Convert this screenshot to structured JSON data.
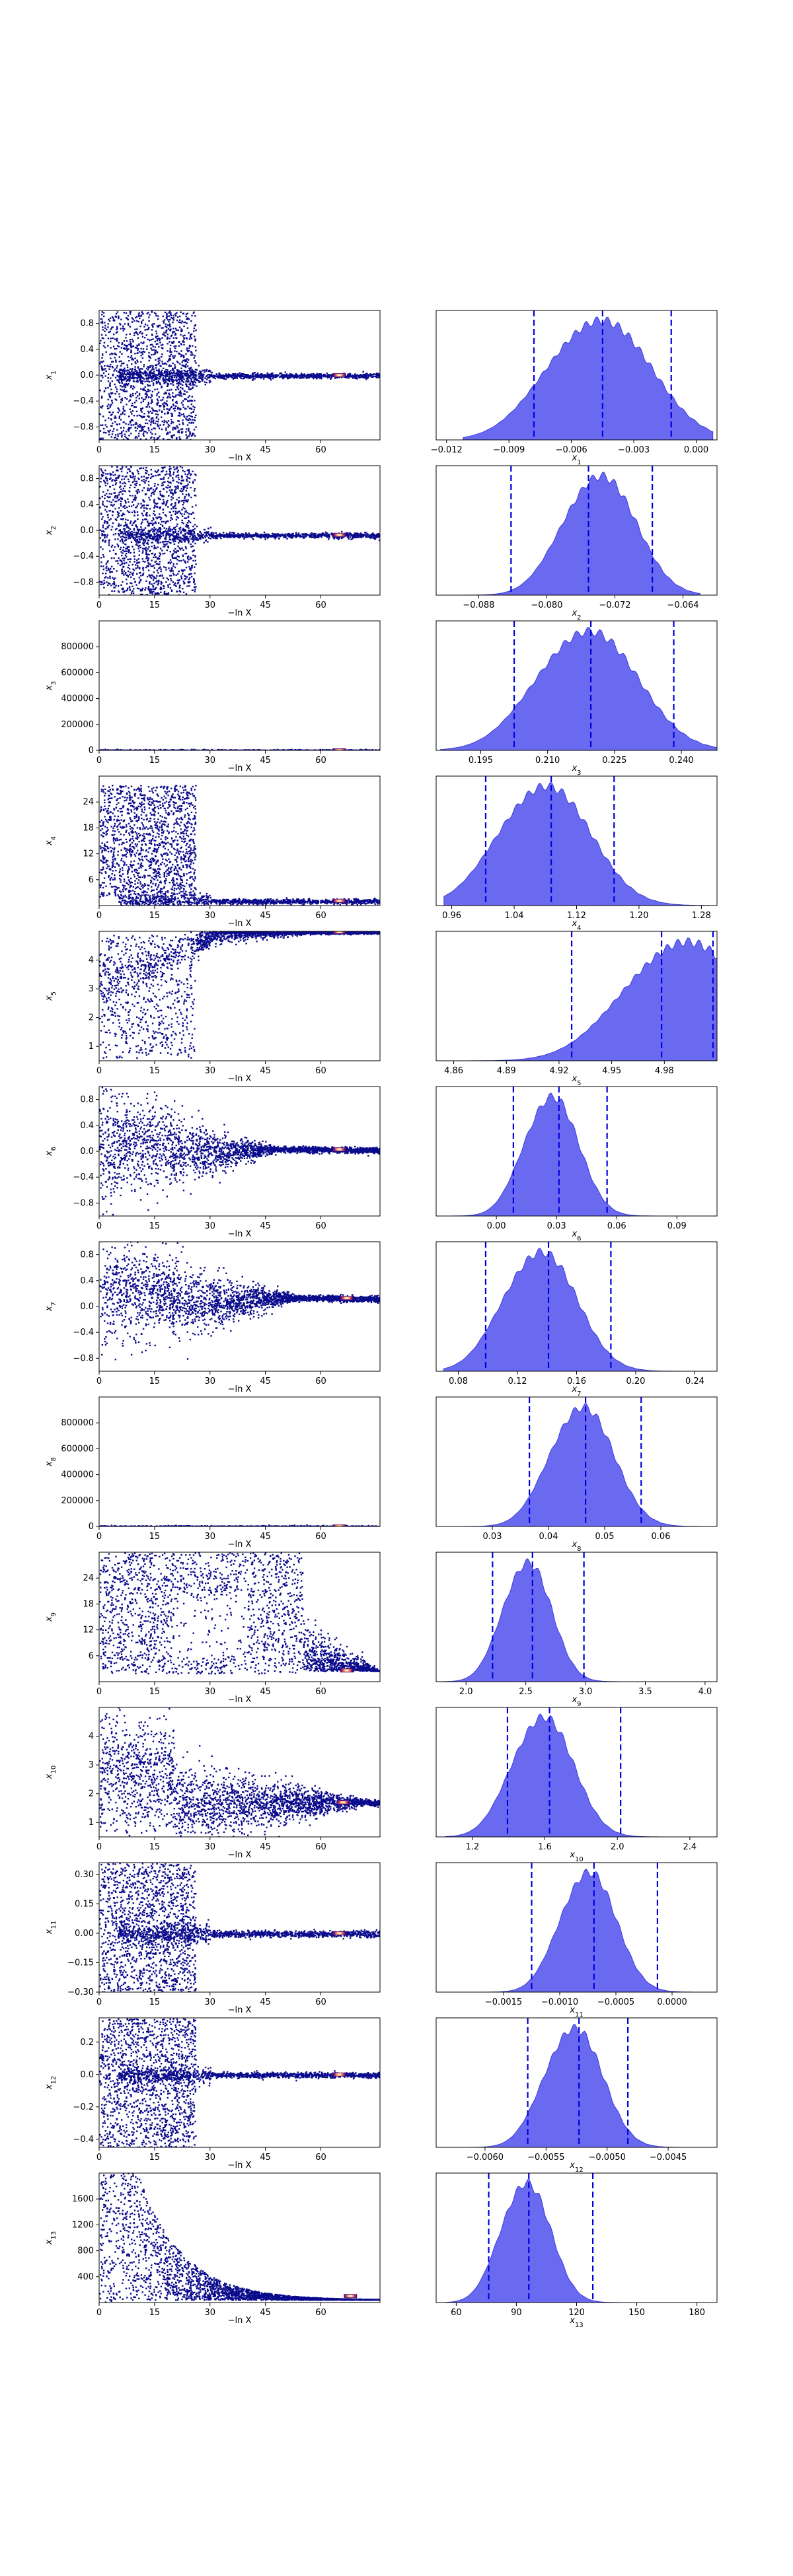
{
  "figure": {
    "title": ""
  },
  "colors": {
    "trace_main": "#0a0a8c",
    "trace_hot": [
      "#3b0f70",
      "#8c2981",
      "#de4968",
      "#fe9f6d",
      "#fcfdbf"
    ],
    "kde_fill": "#5a5af0",
    "kde_edge": "#3b3bdc",
    "quantile_line": "#0000dd",
    "axes": "#000000"
  },
  "chart_data": [
    {
      "type": "scatter",
      "name": "trace-x1",
      "xlabel": "−ln X",
      "ylabel": "x1",
      "xlim": [
        0,
        76
      ],
      "ylim": [
        -1,
        1
      ],
      "xticks": [
        "0",
        "15",
        "30",
        "45",
        "60"
      ],
      "yticks": [
        "0.8",
        "0.4",
        "0.0",
        "−0.4",
        "−0.8"
      ],
      "ytick_values": [
        0.8,
        0.4,
        0,
        -0.4,
        -0.8
      ],
      "pattern": "spread",
      "spread_end": 26,
      "converged_value": 0.0,
      "converged_spread": 0.02,
      "hot_x": 65
    },
    {
      "type": "area",
      "name": "posterior-x1",
      "xlabel": "x1",
      "xlim": [
        -0.0125,
        0.001
      ],
      "xticks": [
        "−0.012",
        "−0.009",
        "−0.006",
        "−0.003",
        "0.000"
      ],
      "xtick_values": [
        -0.012,
        -0.009,
        -0.006,
        -0.003,
        0.0
      ],
      "quantiles": [
        -0.0078,
        -0.0045,
        -0.0012
      ],
      "peak": -0.0042,
      "width": 0.0022,
      "bounds": [
        -0.0112,
        0.0008
      ]
    },
    {
      "type": "scatter",
      "name": "trace-x2",
      "xlabel": "−ln X",
      "ylabel": "x2",
      "xlim": [
        0,
        76
      ],
      "ylim": [
        -1,
        1
      ],
      "xticks": [
        "0",
        "15",
        "30",
        "45",
        "60"
      ],
      "yticks": [
        "0.8",
        "0.4",
        "0.0",
        "−0.4",
        "−0.8"
      ],
      "ytick_values": [
        0.8,
        0.4,
        0,
        -0.4,
        -0.8
      ],
      "pattern": "spread",
      "spread_end": 26,
      "converged_value": -0.07,
      "converged_spread": 0.02,
      "hot_x": 65
    },
    {
      "type": "area",
      "name": "posterior-x2",
      "xlabel": "x2",
      "xlim": [
        -0.093,
        -0.06
      ],
      "xticks": [
        "−0.088",
        "−0.080",
        "−0.072",
        "−0.064"
      ],
      "xtick_values": [
        -0.088,
        -0.08,
        -0.072,
        -0.064
      ],
      "quantiles": [
        -0.0842,
        -0.0751,
        -0.0676
      ],
      "peak": -0.073,
      "width": 0.0038,
      "bounds": [
        -0.092,
        -0.062
      ]
    },
    {
      "type": "scatter",
      "name": "trace-x3",
      "xlabel": "−ln X",
      "ylabel": "x3",
      "xlim": [
        0,
        76
      ],
      "ylim": [
        0,
        1000000
      ],
      "xticks": [
        "0",
        "15",
        "30",
        "45",
        "60"
      ],
      "yticks": [
        "800000",
        "600000",
        "400000",
        "200000",
        "0"
      ],
      "ytick_values": [
        800000,
        600000,
        400000,
        200000,
        0
      ],
      "pattern": "flat",
      "converged_value": 0,
      "hot_x": 65
    },
    {
      "type": "area",
      "name": "posterior-x3",
      "xlabel": "x3",
      "xlim": [
        0.185,
        0.248
      ],
      "xticks": [
        "0.195",
        "0.210",
        "0.225",
        "0.240"
      ],
      "xtick_values": [
        0.195,
        0.21,
        0.225,
        0.24
      ],
      "quantiles": [
        0.2025,
        0.2197,
        0.2383
      ],
      "peak": 0.221,
      "width": 0.01,
      "bounds": [
        0.186,
        0.248
      ]
    },
    {
      "type": "scatter",
      "name": "trace-x4",
      "xlabel": "−ln X",
      "ylabel": "x4",
      "xlim": [
        0,
        76
      ],
      "ylim": [
        0,
        30
      ],
      "xticks": [
        "0",
        "15",
        "30",
        "45",
        "60"
      ],
      "yticks": [
        "24",
        "18",
        "12",
        "6"
      ],
      "ytick_values": [
        24,
        18,
        12,
        6
      ],
      "pattern": "spread_hi",
      "spread_end": 26,
      "converged_value": 1.1,
      "converged_spread": 0.3,
      "hot_x": 65
    },
    {
      "type": "area",
      "name": "posterior-x4",
      "xlabel": "x4",
      "xlim": [
        0.94,
        1.3
      ],
      "xticks": [
        "0.96",
        "1.04",
        "1.12",
        "1.20",
        "1.28"
      ],
      "xtick_values": [
        0.96,
        1.04,
        1.12,
        1.2,
        1.28
      ],
      "quantiles": [
        1.0035,
        1.0875,
        1.1681
      ],
      "peak": 1.09,
      "width": 0.052,
      "bounds": [
        0.95,
        1.29
      ]
    },
    {
      "type": "scatter",
      "name": "trace-x5",
      "xlabel": "−ln X",
      "ylabel": "x5",
      "xlim": [
        0,
        76
      ],
      "ylim": [
        0.5,
        5
      ],
      "xticks": [
        "0",
        "15",
        "30",
        "45",
        "60"
      ],
      "yticks": [
        "4",
        "3",
        "2",
        "1"
      ],
      "ytick_values": [
        4,
        3,
        2,
        1
      ],
      "pattern": "rise",
      "spread_end": 26,
      "converged_value": 4.98,
      "converged_spread": 0.05,
      "hot_x": 65
    },
    {
      "type": "area",
      "name": "posterior-x5",
      "xlabel": "x5",
      "xlim": [
        4.85,
        5.01
      ],
      "xticks": [
        "4.86",
        "4.89",
        "4.92",
        "4.95",
        "4.98"
      ],
      "xtick_values": [
        4.86,
        4.89,
        4.92,
        4.95,
        4.98
      ],
      "quantiles": [
        4.9272,
        4.9784,
        5.0077
      ],
      "peak": 4.998,
      "width": 0.03,
      "bounds": [
        4.87,
        5.01
      ]
    },
    {
      "type": "scatter",
      "name": "trace-x6",
      "xlabel": "−ln X",
      "ylabel": "x6",
      "xlim": [
        0,
        76
      ],
      "ylim": [
        -1,
        1
      ],
      "xticks": [
        "0",
        "15",
        "30",
        "45",
        "60"
      ],
      "yticks": [
        "0.8",
        "0.4",
        "0.0",
        "−0.4",
        "−0.8"
      ],
      "ytick_values": [
        0.8,
        0.4,
        0,
        -0.4,
        -0.8
      ],
      "pattern": "wave",
      "spread_end": 50,
      "converged_value": 0.03,
      "converged_spread": 0.05,
      "hot_x": 65
    },
    {
      "type": "area",
      "name": "posterior-x6",
      "xlabel": "x6",
      "xlim": [
        -0.03,
        0.11
      ],
      "xticks": [
        "0.00",
        "0.03",
        "0.06",
        "0.09"
      ],
      "xtick_values": [
        0,
        0.03,
        0.06,
        0.09
      ],
      "quantiles": [
        0.0085,
        0.0312,
        0.0552
      ],
      "peak": 0.03,
      "width": 0.012,
      "bounds": [
        -0.028,
        0.108
      ]
    },
    {
      "type": "scatter",
      "name": "trace-x7",
      "xlabel": "−ln X",
      "ylabel": "x7",
      "xlim": [
        0,
        76
      ],
      "ylim": [
        -1,
        1
      ],
      "xticks": [
        "0",
        "15",
        "30",
        "45",
        "60"
      ],
      "yticks": [
        "0.8",
        "0.4",
        "0.0",
        "−0.4",
        "−0.8"
      ],
      "ytick_values": [
        0.8,
        0.4,
        0,
        -0.4,
        -0.8
      ],
      "pattern": "wave",
      "spread_end": 55,
      "converged_value": 0.13,
      "converged_spread": 0.05,
      "hot_x": 67
    },
    {
      "type": "area",
      "name": "posterior-x7",
      "xlabel": "x7",
      "xlim": [
        0.065,
        0.255
      ],
      "xticks": [
        "0.08",
        "0.12",
        "0.16",
        "0.20",
        "0.24"
      ],
      "xtick_values": [
        0.08,
        0.12,
        0.16,
        0.2,
        0.24
      ],
      "quantiles": [
        0.0985,
        0.141,
        0.1832
      ],
      "peak": 0.14,
      "width": 0.022,
      "bounds": [
        0.07,
        0.25
      ]
    },
    {
      "type": "scatter",
      "name": "trace-x8",
      "xlabel": "−ln X",
      "ylabel": "x8",
      "xlim": [
        0,
        76
      ],
      "ylim": [
        0,
        1000000
      ],
      "xticks": [
        "0",
        "15",
        "30",
        "45",
        "60"
      ],
      "yticks": [
        "800000",
        "600000",
        "400000",
        "200000",
        "0"
      ],
      "ytick_values": [
        800000,
        600000,
        400000,
        200000,
        0
      ],
      "pattern": "flat",
      "converged_value": 0,
      "hot_x": 65
    },
    {
      "type": "area",
      "name": "posterior-x8",
      "xlabel": "x8",
      "xlim": [
        0.02,
        0.07
      ],
      "xticks": [
        "0.03",
        "0.04",
        "0.05",
        "0.06"
      ],
      "xtick_values": [
        0.03,
        0.04,
        0.05,
        0.06
      ],
      "quantiles": [
        0.0366,
        0.0466,
        0.0565
      ],
      "peak": 0.047,
      "width": 0.005,
      "bounds": [
        0.021,
        0.069
      ]
    },
    {
      "type": "scatter",
      "name": "trace-x9",
      "xlabel": "−ln X",
      "ylabel": "x9",
      "xlim": [
        0,
        76
      ],
      "ylim": [
        0,
        30
      ],
      "xticks": [
        "0",
        "15",
        "30",
        "45",
        "60"
      ],
      "yticks": [
        "24",
        "18",
        "12",
        "6"
      ],
      "ytick_values": [
        24,
        18,
        12,
        6
      ],
      "pattern": "ring",
      "spread_end": 55,
      "converged_value": 2.6,
      "converged_spread": 0.5,
      "hot_x": 67
    },
    {
      "type": "area",
      "name": "posterior-x9",
      "xlabel": "x9",
      "xlim": [
        1.75,
        4.1
      ],
      "xticks": [
        "2.0",
        "2.5",
        "3.0",
        "3.5",
        "4.0"
      ],
      "xtick_values": [
        2,
        2.5,
        3,
        3.5,
        4
      ],
      "quantiles": [
        2.2219,
        2.556,
        2.9865
      ],
      "peak": 2.55,
      "width": 0.18,
      "bounds": [
        1.8,
        4.05
      ]
    },
    {
      "type": "scatter",
      "name": "trace-x10",
      "xlabel": "−ln X",
      "ylabel": "x10",
      "xlim": [
        0,
        76
      ],
      "ylim": [
        0.5,
        5
      ],
      "xticks": [
        "0",
        "15",
        "30",
        "45",
        "60"
      ],
      "yticks": [
        "4",
        "3",
        "2",
        "1"
      ],
      "ytick_values": [
        4,
        3,
        2,
        1
      ],
      "pattern": "wave_hi",
      "spread_end": 76,
      "converged_value": 1.7,
      "converged_spread": 0.25,
      "hot_x": 66
    },
    {
      "type": "area",
      "name": "posterior-x10",
      "xlabel": "x10",
      "xlim": [
        1.0,
        2.55
      ],
      "xticks": [
        "1.2",
        "1.6",
        "2.0",
        "2.4"
      ],
      "xtick_values": [
        1.2,
        1.6,
        2.0,
        2.4
      ],
      "quantiles": [
        1.3937,
        1.6257,
        2.0181
      ],
      "peak": 1.62,
      "width": 0.15,
      "bounds": [
        1.05,
        2.5
      ]
    },
    {
      "type": "scatter",
      "name": "trace-x11",
      "xlabel": "−ln X",
      "ylabel": "x11",
      "xlim": [
        0,
        76
      ],
      "ylim": [
        -0.3,
        0.36
      ],
      "xticks": [
        "0",
        "15",
        "30",
        "45",
        "60"
      ],
      "yticks": [
        "0.30",
        "0.15",
        "0.00",
        "−0.15",
        "−0.30"
      ],
      "ytick_values": [
        0.3,
        0.15,
        0,
        -0.15,
        -0.3
      ],
      "pattern": "spread",
      "spread_end": 26,
      "converged_value": 0.0,
      "converged_spread": 0.008,
      "hot_x": 65
    },
    {
      "type": "area",
      "name": "posterior-x11",
      "xlabel": "x11",
      "xlim": [
        -0.0021,
        0.0004
      ],
      "xticks": [
        "−0.0015",
        "−0.0010",
        "−0.0005",
        "0.0000"
      ],
      "xtick_values": [
        -0.0015,
        -0.001,
        -0.0005,
        0
      ],
      "quantiles": [
        -0.00125,
        -0.000695,
        -0.00013
      ],
      "peak": -0.0007,
      "width": 0.00022,
      "bounds": [
        -0.002,
        0.0003
      ]
    },
    {
      "type": "scatter",
      "name": "trace-x12",
      "xlabel": "−ln X",
      "ylabel": "x12",
      "xlim": [
        0,
        76
      ],
      "ylim": [
        -0.45,
        0.35
      ],
      "xticks": [
        "0",
        "15",
        "30",
        "45",
        "60"
      ],
      "yticks": [
        "0.2",
        "0.0",
        "−0.2",
        "−0.4"
      ],
      "ytick_values": [
        0.2,
        0,
        -0.2,
        -0.4
      ],
      "pattern": "spread",
      "spread_end": 26,
      "converged_value": 0.0,
      "converged_spread": 0.008,
      "hot_x": 65
    },
    {
      "type": "area",
      "name": "posterior-x12",
      "xlabel": "x12",
      "xlim": [
        -0.0064,
        -0.0041
      ],
      "xticks": [
        "−0.0060",
        "−0.0055",
        "−0.0050",
        "−0.0045"
      ],
      "xtick_values": [
        -0.006,
        -0.0055,
        -0.005,
        -0.0045
      ],
      "quantiles": [
        -0.00565,
        -0.00523,
        -0.00483
      ],
      "peak": -0.00523,
      "width": 0.00021,
      "bounds": [
        -0.0063,
        -0.0042
      ]
    },
    {
      "type": "scatter",
      "name": "trace-x13",
      "xlabel": "−ln X",
      "ylabel": "x13",
      "xlim": [
        0,
        76
      ],
      "ylim": [
        0,
        2000
      ],
      "xticks": [
        "0",
        "15",
        "30",
        "45",
        "60"
      ],
      "yticks": [
        "1600",
        "1200",
        "800",
        "400"
      ],
      "ytick_values": [
        1600,
        1200,
        800,
        400
      ],
      "pattern": "decay",
      "spread_end": 76,
      "converged_value": 100,
      "converged_spread": 40,
      "hot_x": 68
    },
    {
      "type": "area",
      "name": "posterior-x13",
      "xlabel": "x13",
      "xlim": [
        50,
        190
      ],
      "xticks": [
        "60",
        "90",
        "120",
        "150",
        "180"
      ],
      "xtick_values": [
        60,
        90,
        120,
        150,
        180
      ],
      "quantiles": [
        76.2,
        96.2,
        128.1
      ],
      "peak": 97,
      "width": 11,
      "bounds": [
        55,
        185
      ]
    }
  ]
}
